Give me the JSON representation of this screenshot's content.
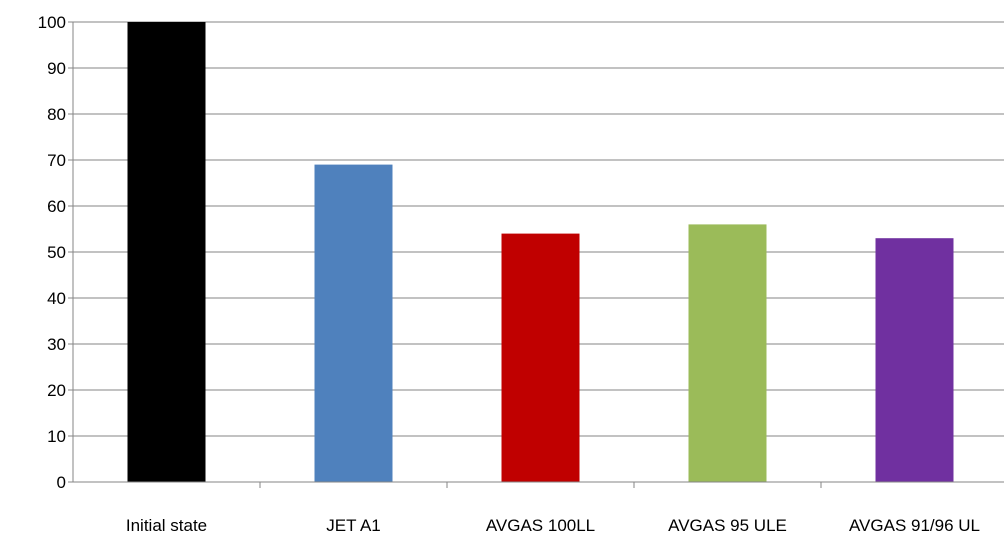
{
  "chart_data": {
    "type": "bar",
    "title": "",
    "xlabel": "",
    "ylabel": "",
    "categories": [
      "Initial state",
      "JET A1",
      "AVGAS 100LL",
      "AVGAS 95 ULE",
      "AVGAS 91/96 UL"
    ],
    "values": [
      100,
      69,
      54,
      56,
      53
    ],
    "colors": [
      "#000000",
      "#4f81bd",
      "#c00000",
      "#9bbb59",
      "#7030a0"
    ],
    "ylim": [
      0,
      100
    ],
    "yticks": [
      "0",
      "10",
      "20",
      "30",
      "40",
      "50",
      "60",
      "70",
      "80",
      "90",
      "100"
    ],
    "grid": true,
    "legend": "none"
  }
}
